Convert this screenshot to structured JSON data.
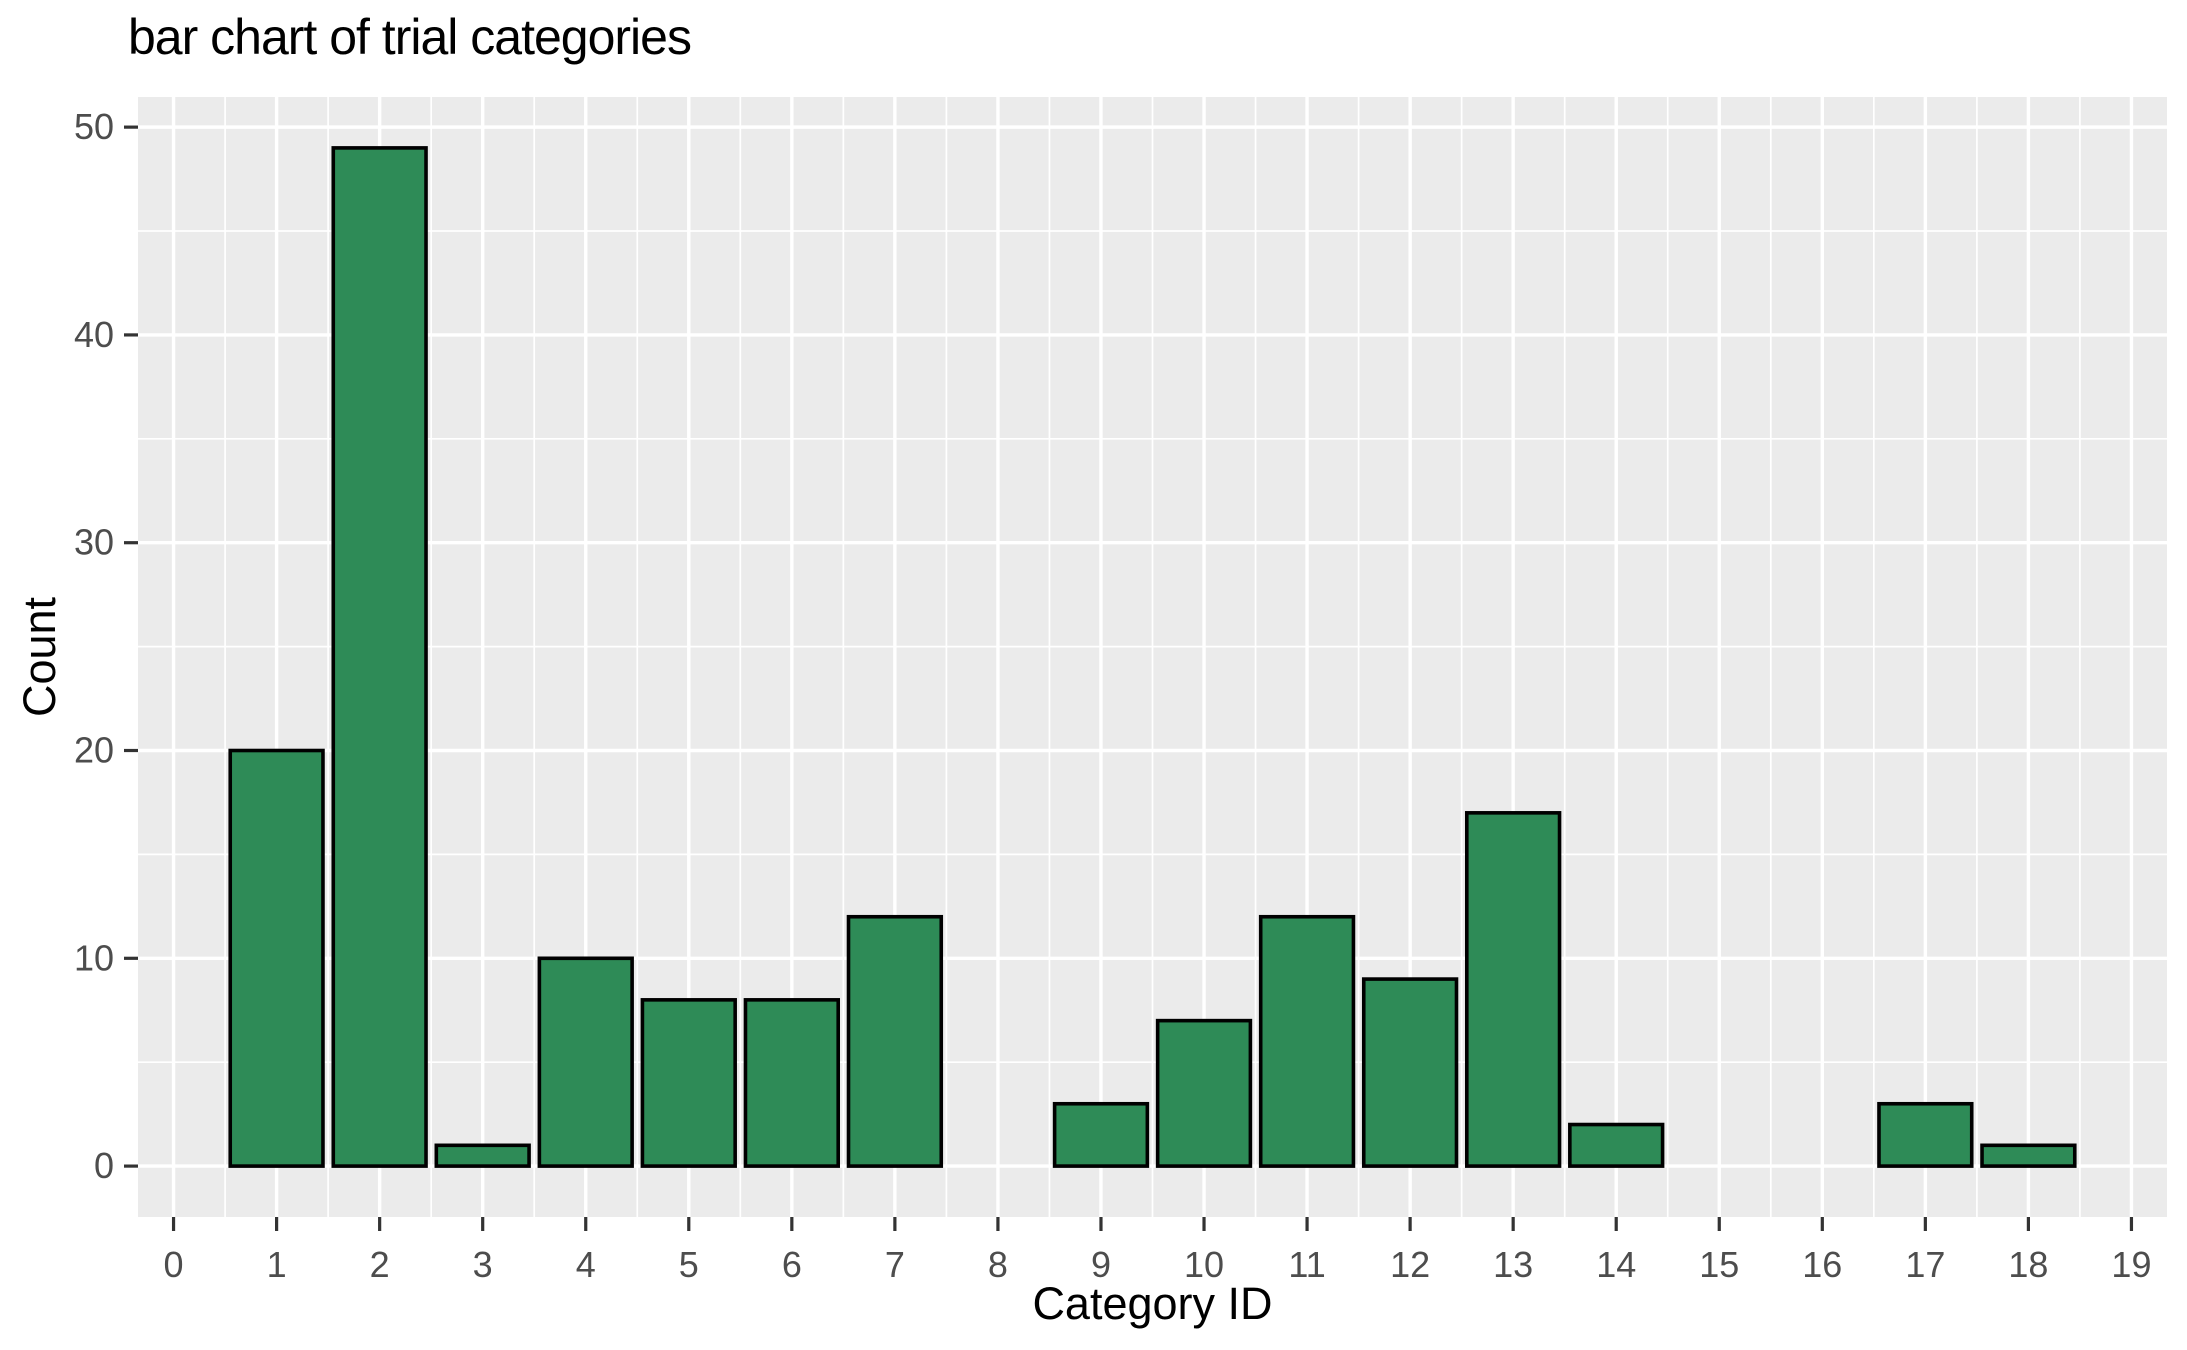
{
  "chart_data": {
    "type": "bar",
    "title": "bar chart of trial categories",
    "xlabel": "Category ID",
    "ylabel": "Count",
    "categories": [
      0,
      1,
      2,
      3,
      4,
      5,
      6,
      7,
      8,
      9,
      10,
      11,
      12,
      13,
      14,
      15,
      16,
      17,
      18,
      19
    ],
    "values": [
      0,
      20,
      49,
      1,
      10,
      8,
      8,
      12,
      0,
      3,
      7,
      12,
      9,
      17,
      2,
      0,
      0,
      3,
      1,
      0
    ],
    "bar_width": 0.9,
    "xlim": [
      -0.345,
      19.345
    ],
    "ylim": [
      -2.45,
      51.45
    ],
    "x_ticks": [
      0,
      1,
      2,
      3,
      4,
      5,
      6,
      7,
      8,
      9,
      10,
      11,
      12,
      13,
      14,
      15,
      16,
      17,
      18,
      19
    ],
    "x_tick_labels": [
      "0",
      "1",
      "2",
      "3",
      "4",
      "5",
      "6",
      "7",
      "8",
      "9",
      "10",
      "11",
      "12",
      "13",
      "14",
      "15",
      "16",
      "17",
      "18",
      "19"
    ],
    "x_minor_ticks": [
      0.5,
      1.5,
      2.5,
      3.5,
      4.5,
      5.5,
      6.5,
      7.5,
      8.5,
      9.5,
      10.5,
      11.5,
      12.5,
      13.5,
      14.5,
      15.5,
      16.5,
      17.5,
      18.5
    ],
    "y_ticks": [
      0,
      10,
      20,
      30,
      40,
      50
    ],
    "y_tick_labels": [
      "0",
      "10",
      "20",
      "30",
      "40",
      "50"
    ],
    "y_minor_ticks": [
      5,
      15,
      25,
      35,
      45
    ],
    "grid": true,
    "legend_position": "none",
    "colors": {
      "bar_fill": "#2E8B57",
      "bar_stroke": "#000000",
      "panel_bg": "#EBEBEB",
      "grid_major": "#FFFFFF",
      "grid_minor": "#FFFFFF",
      "tick_mark": "#333333",
      "tick_label": "#4D4D4D",
      "title_text": "#000000",
      "page_bg": "#FFFFFF"
    }
  }
}
